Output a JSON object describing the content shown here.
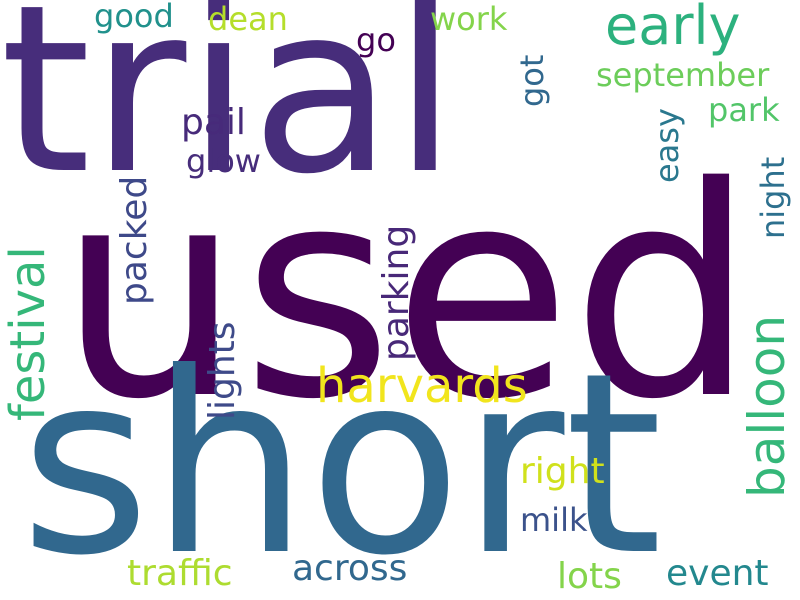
{
  "words": [
    {
      "text": "used",
      "color": "#440154",
      "weight": 1.0
    },
    {
      "text": "short",
      "color": "#31688e",
      "weight": 0.93
    },
    {
      "text": "trial",
      "color": "#472d7b",
      "weight": 0.86
    },
    {
      "text": "balloon",
      "color": "#35b779",
      "weight": 0.34
    },
    {
      "text": "harvards",
      "color": "#f1e51d",
      "weight": 0.3
    },
    {
      "text": "early",
      "color": "#2cb17e",
      "weight": 0.28
    },
    {
      "text": "festival",
      "color": "#35b779",
      "weight": 0.28
    },
    {
      "text": "right",
      "color": "#d0e11c",
      "weight": 0.22
    },
    {
      "text": "parking",
      "color": "#482878",
      "weight": 0.22
    },
    {
      "text": "lights",
      "color": "#3e4a89",
      "weight": 0.22
    },
    {
      "text": "pail",
      "color": "#472a7a",
      "weight": 0.22
    },
    {
      "text": "traffic",
      "color": "#addc30",
      "weight": 0.22
    },
    {
      "text": "across",
      "color": "#31688e",
      "weight": 0.22
    },
    {
      "text": "lots",
      "color": "#84d44b",
      "weight": 0.22
    },
    {
      "text": "event",
      "color": "#23888e",
      "weight": 0.22
    },
    {
      "text": "packed",
      "color": "#3e4989",
      "weight": 0.22
    },
    {
      "text": "september",
      "color": "#6ccd5a",
      "weight": 0.22
    },
    {
      "text": "glow",
      "color": "#472d7b",
      "weight": 0.22
    },
    {
      "text": "milk",
      "color": "#3b528b",
      "weight": 0.22
    },
    {
      "text": "park",
      "color": "#52c569",
      "weight": 0.22
    },
    {
      "text": "easy",
      "color": "#2a788e",
      "weight": 0.22
    },
    {
      "text": "night",
      "color": "#2d708e",
      "weight": 0.22
    },
    {
      "text": "good",
      "color": "#21918c",
      "weight": 0.22
    },
    {
      "text": "dean",
      "color": "#b5de2b",
      "weight": 0.22
    },
    {
      "text": "work",
      "color": "#84d44b",
      "weight": 0.22
    },
    {
      "text": "go",
      "color": "#440154",
      "weight": 0.22
    },
    {
      "text": "got",
      "color": "#31688e",
      "weight": 0.22
    }
  ]
}
